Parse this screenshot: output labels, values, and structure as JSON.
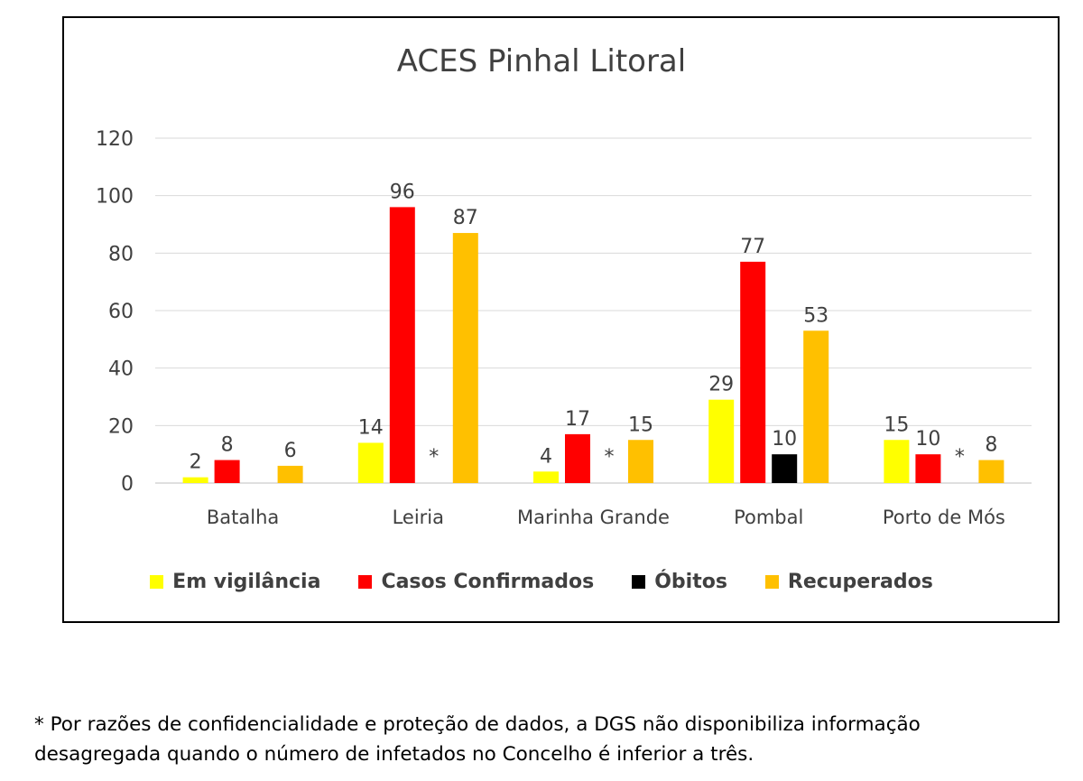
{
  "chart_data": {
    "type": "bar",
    "title": "ACES Pinhal Litoral",
    "xlabel": "",
    "ylabel": "",
    "ylim": [
      0,
      120
    ],
    "yticks": [
      "0",
      "20",
      "40",
      "60",
      "80",
      "100",
      "120"
    ],
    "grid": true,
    "legend_position": "bottom",
    "categories": [
      "Batalha",
      "Leiria",
      "Marinha Grande",
      "Pombal",
      "Porto de Mós"
    ],
    "series": [
      {
        "name": "Em vigilância",
        "color": "#FFFF00",
        "values": [
          2,
          14,
          4,
          29,
          15
        ],
        "labels": [
          "2",
          "14",
          "4",
          "29",
          "15"
        ]
      },
      {
        "name": "Casos Confirmados",
        "color": "#FF0000",
        "values": [
          8,
          96,
          17,
          77,
          10
        ],
        "labels": [
          "8",
          "96",
          "17",
          "77",
          "10"
        ]
      },
      {
        "name": "Óbitos",
        "color": "#000000",
        "values": [
          null,
          null,
          null,
          10,
          null
        ],
        "labels": [
          "",
          "*",
          "*",
          "10",
          "*"
        ]
      },
      {
        "name": "Recuperados",
        "color": "#FFC000",
        "values": [
          6,
          87,
          15,
          53,
          8
        ],
        "labels": [
          "6",
          "87",
          "15",
          "53",
          "8"
        ]
      }
    ]
  },
  "footnote": {
    "line1": "* Por razões de confidencialidade e proteção de dados, a DGS não disponibiliza informação",
    "line2": "desagregada quando o número de infetados no Concelho é inferior a três."
  }
}
